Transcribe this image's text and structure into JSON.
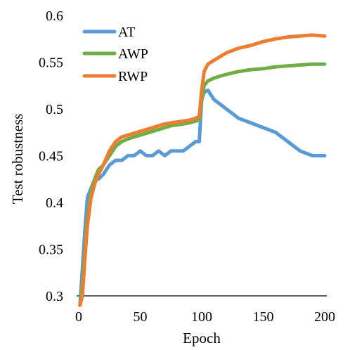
{
  "chart_data": {
    "type": "line",
    "xlabel": "Epoch",
    "ylabel": "Test robustness",
    "xlim": [
      0,
      200
    ],
    "ylim": [
      0.3,
      0.6
    ],
    "xticks": [
      0,
      50,
      100,
      150,
      200
    ],
    "yticks": [
      0.3,
      0.35,
      0.4,
      0.45,
      0.5,
      0.55,
      0.6
    ],
    "ytick_labels": [
      "0.3",
      "0.35",
      "0.4",
      "0.45",
      "0.5",
      "0.55",
      "0.6"
    ],
    "xtick_labels": [
      "0",
      "50",
      "100",
      "150",
      "200"
    ],
    "grid": false,
    "legend_position": "top-left",
    "series": [
      {
        "name": "AT",
        "color": "#5b9bd5",
        "x": [
          1,
          3,
          5,
          7,
          10,
          13,
          16,
          20,
          25,
          30,
          35,
          40,
          45,
          50,
          55,
          60,
          65,
          70,
          75,
          80,
          85,
          90,
          95,
          98,
          100,
          102,
          105,
          110,
          115,
          120,
          125,
          130,
          140,
          150,
          160,
          170,
          180,
          190,
          200
        ],
        "y": [
          0.29,
          0.33,
          0.37,
          0.405,
          0.415,
          0.425,
          0.425,
          0.43,
          0.44,
          0.445,
          0.445,
          0.45,
          0.45,
          0.455,
          0.45,
          0.45,
          0.455,
          0.45,
          0.455,
          0.455,
          0.455,
          0.46,
          0.465,
          0.465,
          0.51,
          0.518,
          0.52,
          0.51,
          0.505,
          0.5,
          0.495,
          0.49,
          0.485,
          0.48,
          0.475,
          0.465,
          0.455,
          0.45,
          0.45
        ]
      },
      {
        "name": "AWP",
        "color": "#70ad47",
        "x": [
          1,
          3,
          5,
          7,
          10,
          13,
          16,
          20,
          25,
          30,
          35,
          40,
          45,
          50,
          55,
          60,
          65,
          70,
          75,
          80,
          85,
          90,
          95,
          98,
          100,
          102,
          105,
          110,
          115,
          120,
          130,
          140,
          150,
          160,
          170,
          180,
          190,
          200
        ],
        "y": [
          0.29,
          0.31,
          0.35,
          0.38,
          0.41,
          0.425,
          0.435,
          0.44,
          0.45,
          0.46,
          0.465,
          0.468,
          0.47,
          0.472,
          0.474,
          0.476,
          0.478,
          0.48,
          0.482,
          0.483,
          0.484,
          0.485,
          0.487,
          0.488,
          0.51,
          0.525,
          0.53,
          0.533,
          0.535,
          0.537,
          0.54,
          0.542,
          0.543,
          0.545,
          0.546,
          0.547,
          0.548,
          0.548
        ]
      },
      {
        "name": "RWP",
        "color": "#ed7d31",
        "x": [
          1,
          3,
          5,
          7,
          10,
          13,
          16,
          20,
          25,
          30,
          35,
          40,
          45,
          50,
          55,
          60,
          65,
          70,
          75,
          80,
          85,
          90,
          95,
          98,
          100,
          102,
          105,
          110,
          115,
          120,
          130,
          140,
          150,
          160,
          170,
          180,
          190,
          200
        ],
        "y": [
          0.29,
          0.3,
          0.34,
          0.375,
          0.405,
          0.42,
          0.43,
          0.44,
          0.455,
          0.465,
          0.47,
          0.472,
          0.474,
          0.476,
          0.478,
          0.48,
          0.482,
          0.484,
          0.485,
          0.486,
          0.487,
          0.488,
          0.49,
          0.492,
          0.52,
          0.54,
          0.548,
          0.552,
          0.556,
          0.56,
          0.565,
          0.568,
          0.572,
          0.575,
          0.577,
          0.578,
          0.579,
          0.578
        ]
      }
    ]
  }
}
